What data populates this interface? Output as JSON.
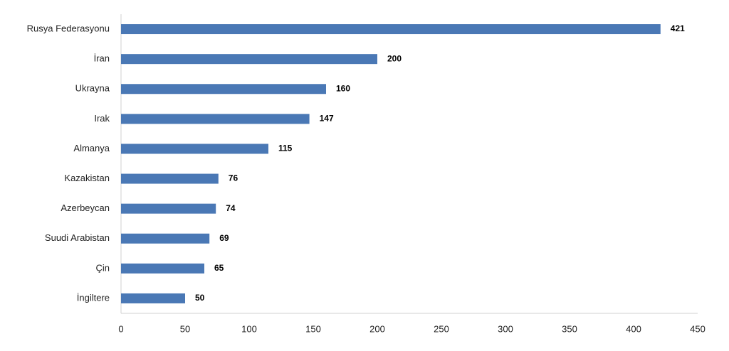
{
  "chart_data": {
    "type": "bar",
    "categories": [
      "Rusya Federasyonu",
      "İran",
      "Ukrayna",
      "Irak",
      "Almanya",
      "Kazakistan",
      "Azerbeycan",
      "Suudi Arabistan",
      "Çin",
      "İngiltere"
    ],
    "values": [
      421,
      200,
      160,
      147,
      115,
      76,
      74,
      69,
      65,
      50
    ],
    "color": "#4a78b5",
    "xlim": [
      0,
      450
    ],
    "xticks": [
      0,
      50,
      100,
      150,
      200,
      250,
      300,
      350,
      400,
      450
    ]
  }
}
